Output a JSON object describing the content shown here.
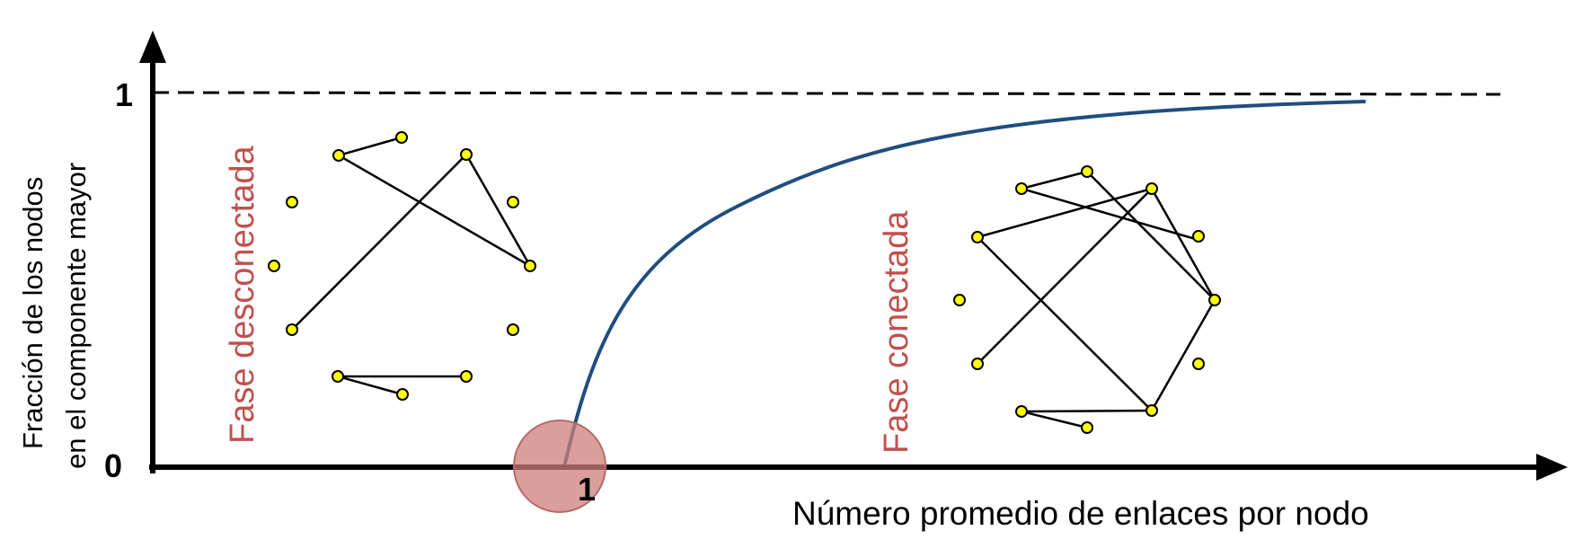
{
  "axes": {
    "y_tick_top": "1",
    "y_tick_bottom": "0",
    "x_tick": "1",
    "x_title": "Número promedio de enlaces por nodo",
    "y_title_line1": "Fracción de los nodos",
    "y_title_line2": "en el componente  mayor"
  },
  "phases": {
    "disconnected": "Fase desconectada",
    "connected": "Fase conectada"
  },
  "colors": {
    "curve": "#1f4e80",
    "phase_text": "#c0504d",
    "node_fill": "#ffff00",
    "critical_marker": "#cd7f7c",
    "axis": "#000000"
  }
}
